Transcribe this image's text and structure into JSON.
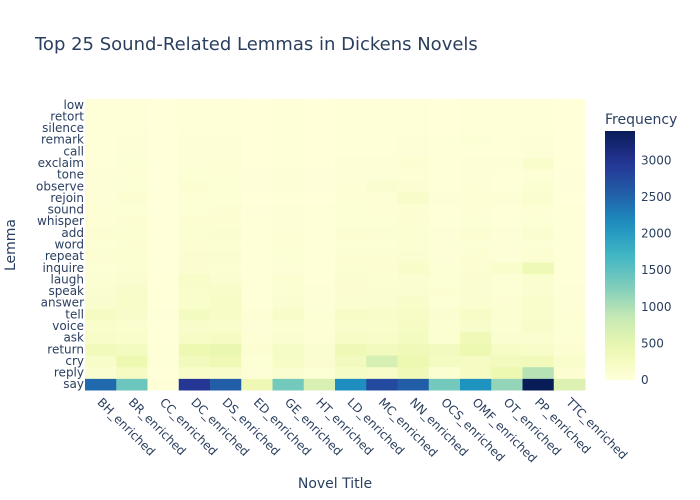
{
  "chart_data": {
    "type": "heatmap",
    "title": "Top 25 Sound-Related Lemmas in Dickens Novels",
    "xlabel": "Novel Title",
    "ylabel": "Lemma",
    "colorbar_title": "Frequency",
    "colorscale": "YlGnBu",
    "zrange": [
      0,
      3400
    ],
    "colorbar_ticks": [
      0,
      500,
      1000,
      1500,
      2000,
      2500,
      3000
    ],
    "x": [
      "BH_enriched",
      "BR_enriched",
      "CC_enriched",
      "DC_enriched",
      "DS_enriched",
      "ED_enriched",
      "GE_enriched",
      "HT_enriched",
      "LD_enriched",
      "MC_enriched",
      "NN_enriched",
      "OCS_enriched",
      "OMF_enriched",
      "OT_enriched",
      "PP_enriched",
      "TTC_enriched"
    ],
    "y": [
      "say",
      "reply",
      "cry",
      "return",
      "ask",
      "voice",
      "tell",
      "answer",
      "speak",
      "laugh",
      "inquire",
      "repeat",
      "word",
      "add",
      "whisper",
      "sound",
      "rejoin",
      "observe",
      "tone",
      "exclaim",
      "call",
      "remark",
      "silence",
      "retort",
      "low"
    ],
    "z": [
      [
        2450,
        1400,
        30,
        2950,
        2550,
        380,
        1350,
        650,
        2150,
        2750,
        2550,
        1350,
        2100,
        1150,
        3400,
        600
      ],
      [
        110,
        230,
        10,
        180,
        160,
        40,
        120,
        60,
        210,
        180,
        340,
        90,
        230,
        420,
        950,
        80
      ],
      [
        170,
        420,
        20,
        300,
        380,
        60,
        200,
        100,
        280,
        680,
        420,
        260,
        240,
        300,
        320,
        140
      ],
      [
        330,
        260,
        20,
        420,
        460,
        70,
        210,
        110,
        380,
        300,
        360,
        280,
        420,
        200,
        170,
        80
      ],
      [
        170,
        150,
        10,
        200,
        240,
        50,
        110,
        50,
        190,
        180,
        260,
        90,
        350,
        110,
        120,
        50
      ],
      [
        150,
        120,
        10,
        160,
        150,
        40,
        90,
        50,
        140,
        140,
        220,
        90,
        160,
        90,
        170,
        60
      ],
      [
        230,
        160,
        15,
        260,
        200,
        50,
        170,
        60,
        200,
        180,
        200,
        110,
        200,
        90,
        140,
        50
      ],
      [
        130,
        180,
        10,
        150,
        200,
        30,
        100,
        40,
        120,
        110,
        180,
        60,
        120,
        80,
        150,
        40
      ],
      [
        110,
        160,
        10,
        140,
        170,
        30,
        90,
        40,
        100,
        120,
        120,
        70,
        110,
        60,
        110,
        40
      ],
      [
        90,
        100,
        10,
        180,
        120,
        30,
        80,
        30,
        100,
        90,
        110,
        60,
        100,
        60,
        120,
        30
      ],
      [
        60,
        90,
        5,
        100,
        90,
        20,
        40,
        20,
        90,
        80,
        180,
        60,
        80,
        140,
        370,
        20
      ],
      [
        70,
        90,
        5,
        100,
        120,
        20,
        60,
        20,
        70,
        70,
        100,
        40,
        70,
        40,
        80,
        20
      ],
      [
        60,
        80,
        5,
        80,
        90,
        20,
        50,
        20,
        60,
        60,
        90,
        40,
        60,
        40,
        60,
        20
      ],
      [
        80,
        90,
        5,
        90,
        110,
        20,
        50,
        20,
        80,
        70,
        90,
        40,
        80,
        40,
        110,
        20
      ],
      [
        50,
        70,
        5,
        70,
        70,
        20,
        40,
        20,
        60,
        60,
        80,
        30,
        60,
        30,
        60,
        20
      ],
      [
        50,
        60,
        5,
        60,
        70,
        15,
        40,
        20,
        60,
        50,
        70,
        30,
        50,
        30,
        50,
        20
      ],
      [
        40,
        70,
        5,
        50,
        60,
        10,
        30,
        10,
        50,
        50,
        170,
        40,
        50,
        50,
        120,
        10
      ],
      [
        40,
        60,
        5,
        70,
        60,
        15,
        40,
        15,
        50,
        110,
        70,
        30,
        50,
        30,
        90,
        15
      ],
      [
        40,
        50,
        5,
        60,
        50,
        15,
        40,
        15,
        40,
        40,
        50,
        20,
        40,
        20,
        50,
        15
      ],
      [
        30,
        60,
        5,
        40,
        50,
        10,
        30,
        10,
        40,
        40,
        70,
        20,
        40,
        40,
        150,
        10
      ],
      [
        30,
        40,
        5,
        40,
        40,
        10,
        30,
        10,
        30,
        30,
        40,
        20,
        30,
        20,
        40,
        10
      ],
      [
        30,
        40,
        5,
        40,
        40,
        10,
        30,
        10,
        30,
        30,
        40,
        20,
        60,
        20,
        40,
        10
      ],
      [
        20,
        30,
        5,
        30,
        30,
        10,
        20,
        10,
        30,
        20,
        30,
        10,
        30,
        20,
        30,
        10
      ],
      [
        20,
        30,
        5,
        30,
        30,
        10,
        20,
        10,
        30,
        20,
        30,
        10,
        20,
        20,
        30,
        10
      ],
      [
        20,
        30,
        5,
        20,
        30,
        10,
        20,
        10,
        20,
        20,
        30,
        10,
        20,
        20,
        20,
        10
      ]
    ]
  }
}
